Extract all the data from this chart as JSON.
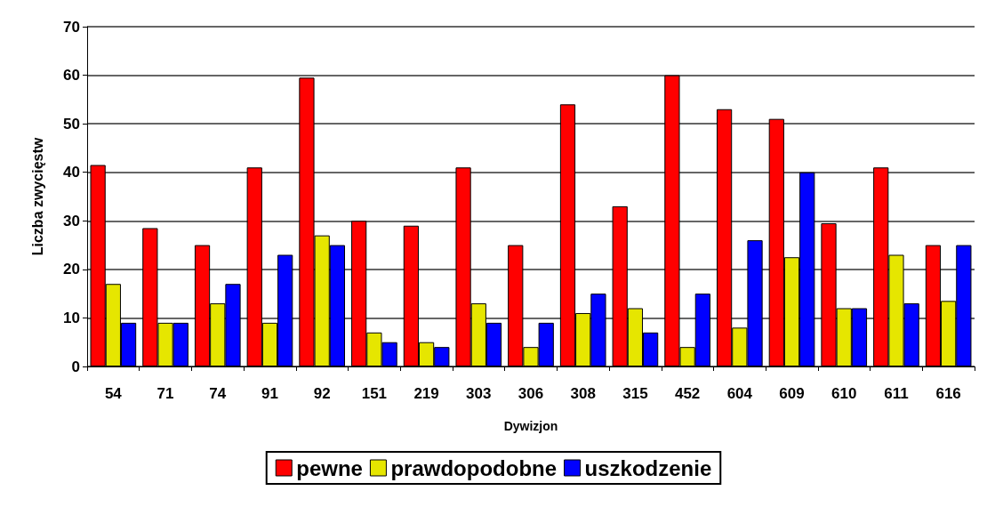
{
  "chart_data": {
    "type": "bar",
    "xlabel": "Dywizjon",
    "ylabel": "Liczba zwycięstw",
    "categories": [
      "54",
      "71",
      "74",
      "91",
      "92",
      "151",
      "219",
      "303",
      "306",
      "308",
      "315",
      "452",
      "604",
      "609",
      "610",
      "611",
      "616"
    ],
    "series": [
      {
        "name": "pewne",
        "color": "#ff0000",
        "values": [
          41.5,
          28.5,
          25,
          41,
          59.5,
          30,
          29,
          41,
          25,
          54,
          33,
          60,
          53,
          51,
          29.5,
          41,
          25
        ]
      },
      {
        "name": "prawdopodobne",
        "color": "#e6e600",
        "values": [
          17,
          9,
          13,
          9,
          27,
          7,
          5,
          13,
          4,
          11,
          12,
          4,
          8,
          22.5,
          12,
          23,
          13.5
        ]
      },
      {
        "name": "uszkodzenie",
        "color": "#0000ff",
        "values": [
          9,
          9,
          17,
          23,
          25,
          5,
          4,
          9,
          9,
          15,
          7,
          15,
          26,
          40,
          12,
          13,
          25
        ]
      }
    ],
    "ylim": [
      0,
      70
    ],
    "yticks": [
      0,
      10,
      20,
      30,
      40,
      50,
      60,
      70
    ],
    "grid": "y",
    "legend": "bottom"
  }
}
